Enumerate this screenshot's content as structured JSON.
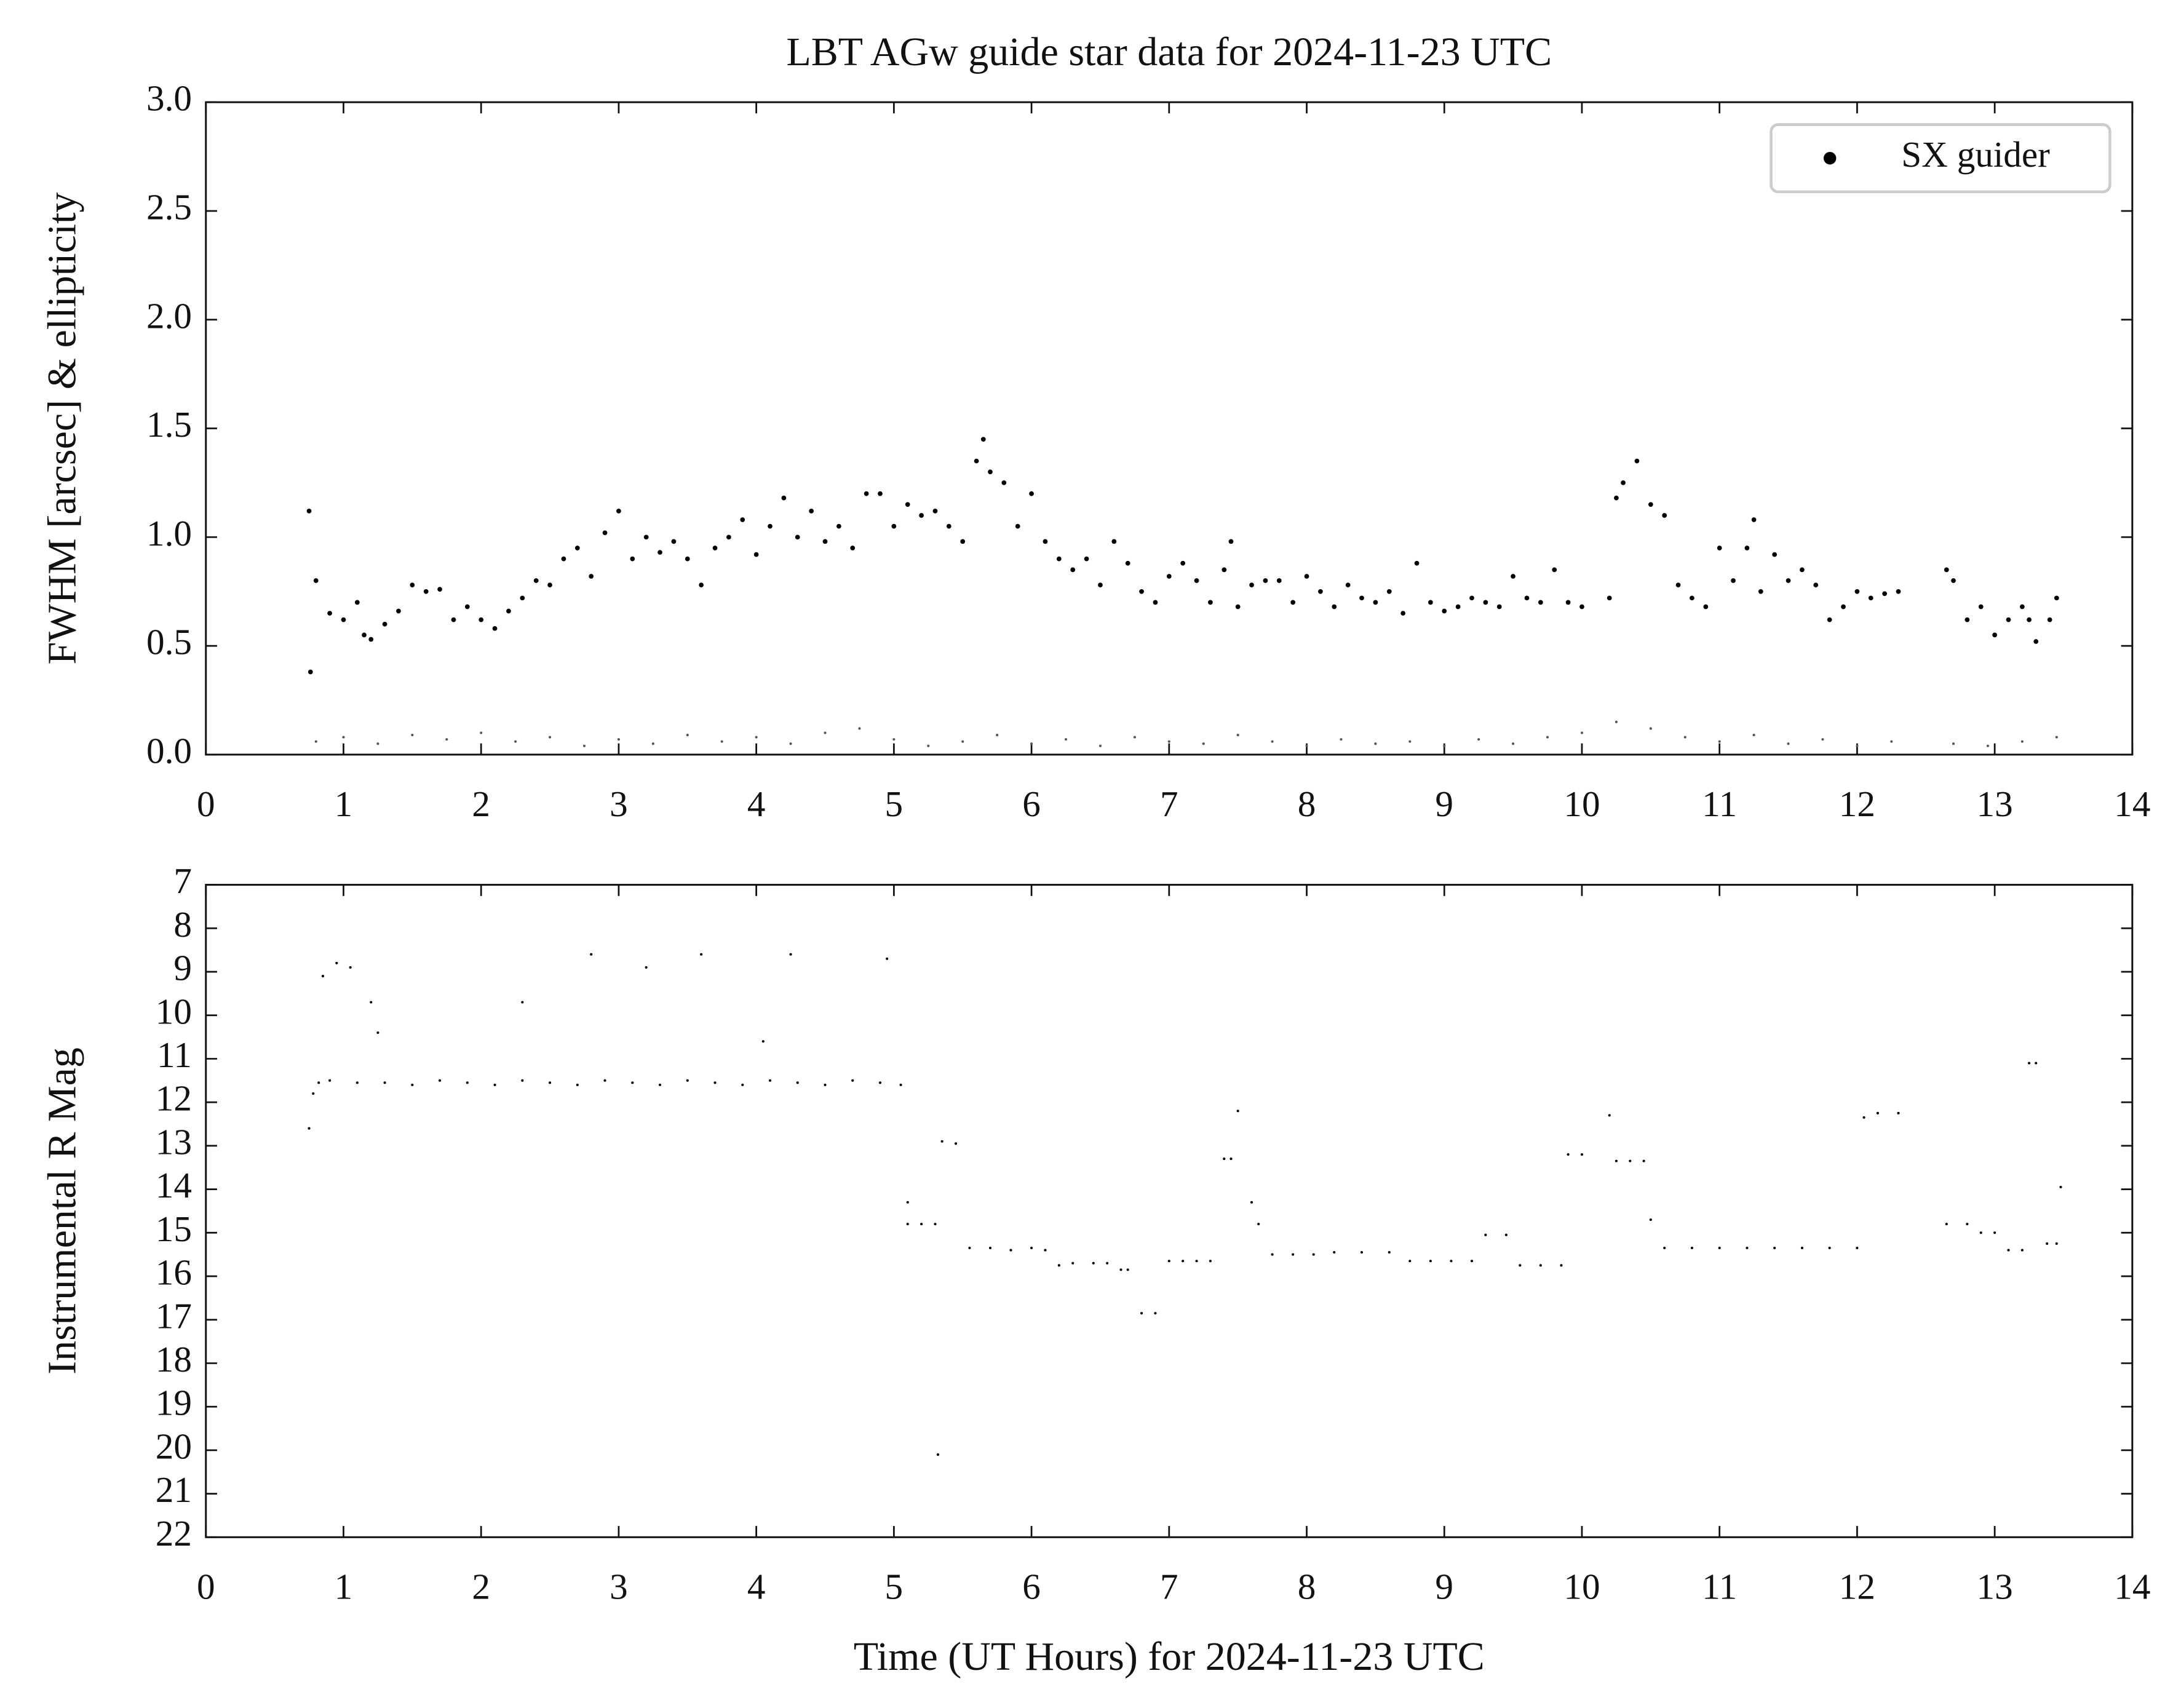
{
  "chart_data": [
    {
      "type": "scatter",
      "title": "LBT AGw guide star data for 2024-11-23 UTC",
      "y_label": "FWHM [arcsec] & ellipticity",
      "xlim": [
        0,
        14
      ],
      "xticks": [
        0,
        1,
        2,
        3,
        4,
        5,
        6,
        7,
        8,
        9,
        10,
        11,
        12,
        13,
        14
      ],
      "ylim": [
        0,
        3
      ],
      "yticks": [
        {
          "value": 0,
          "label": "0.0"
        },
        0.5,
        {
          "value": 1,
          "label": "1.0"
        },
        1.5,
        {
          "value": 2,
          "label": "2.0"
        },
        2.5,
        {
          "value": 3,
          "label": "3.0"
        }
      ],
      "legend": "upper right",
      "series": [
        {
          "name": "SX guider",
          "color": "#000000",
          "x": [
            0.75,
            0.76,
            0.8,
            0.9,
            1.0,
            1.1,
            1.15,
            1.2,
            1.3,
            1.4,
            1.5,
            1.6,
            1.7,
            1.8,
            1.9,
            2.0,
            2.1,
            2.2,
            2.3,
            2.4,
            2.5,
            2.6,
            2.7,
            2.8,
            2.9,
            3.0,
            3.1,
            3.2,
            3.3,
            3.4,
            3.5,
            3.6,
            3.7,
            3.8,
            3.9,
            4.0,
            4.1,
            4.2,
            4.3,
            4.4,
            4.5,
            4.6,
            4.7,
            4.8,
            4.9,
            5.0,
            5.1,
            5.2,
            5.3,
            5.4,
            5.5,
            5.6,
            5.65,
            5.7,
            5.8,
            5.9,
            6.0,
            6.1,
            6.2,
            6.3,
            6.4,
            6.5,
            6.6,
            6.7,
            6.8,
            6.9,
            7.0,
            7.1,
            7.2,
            7.3,
            7.4,
            7.45,
            7.5,
            7.6,
            7.7,
            7.8,
            7.9,
            8.0,
            8.1,
            8.2,
            8.3,
            8.4,
            8.5,
            8.6,
            8.7,
            8.8,
            8.9,
            9.0,
            9.1,
            9.2,
            9.3,
            9.4,
            9.5,
            9.6,
            9.7,
            9.8,
            9.9,
            10.0,
            10.2,
            10.25,
            10.3,
            10.4,
            10.5,
            10.6,
            10.7,
            10.8,
            10.9,
            11.0,
            11.1,
            11.2,
            11.25,
            11.3,
            11.4,
            11.5,
            11.6,
            11.7,
            11.8,
            11.9,
            12.0,
            12.1,
            12.2,
            12.3,
            12.65,
            12.7,
            12.8,
            12.9,
            13.0,
            13.1,
            13.2,
            13.25,
            13.3,
            13.4,
            13.45
          ],
          "values": [
            1.12,
            0.38,
            0.8,
            0.65,
            0.62,
            0.7,
            0.55,
            0.53,
            0.6,
            0.66,
            0.78,
            0.75,
            0.76,
            0.62,
            0.68,
            0.62,
            0.58,
            0.66,
            0.72,
            0.8,
            0.78,
            0.9,
            0.95,
            0.82,
            1.02,
            1.12,
            0.9,
            1.0,
            0.93,
            0.98,
            0.9,
            0.78,
            0.95,
            1.0,
            1.08,
            0.92,
            1.05,
            1.18,
            1.0,
            1.12,
            0.98,
            1.05,
            0.95,
            1.2,
            1.2,
            1.05,
            1.15,
            1.1,
            1.12,
            1.05,
            0.98,
            1.35,
            1.45,
            1.3,
            1.25,
            1.05,
            1.2,
            0.98,
            0.9,
            0.85,
            0.9,
            0.78,
            0.98,
            0.88,
            0.75,
            0.7,
            0.82,
            0.88,
            0.8,
            0.7,
            0.85,
            0.98,
            0.68,
            0.78,
            0.8,
            0.8,
            0.7,
            0.82,
            0.75,
            0.68,
            0.78,
            0.72,
            0.7,
            0.75,
            0.65,
            0.88,
            0.7,
            0.66,
            0.68,
            0.72,
            0.7,
            0.68,
            0.82,
            0.72,
            0.7,
            0.85,
            0.7,
            0.68,
            0.72,
            1.18,
            1.25,
            1.35,
            1.15,
            1.1,
            0.78,
            0.72,
            0.68,
            0.95,
            0.8,
            0.95,
            1.08,
            0.75,
            0.92,
            0.8,
            0.85,
            0.78,
            0.62,
            0.68,
            0.75,
            0.72,
            0.74,
            0.75,
            0.85,
            0.8,
            0.62,
            0.68,
            0.55,
            0.62,
            0.68,
            0.62,
            0.52,
            0.62,
            0.72
          ]
        },
        {
          "color": "#555555",
          "x": [
            0.8,
            1.0,
            1.25,
            1.5,
            1.75,
            2.0,
            2.25,
            2.5,
            2.75,
            3.0,
            3.25,
            3.5,
            3.75,
            4.0,
            4.25,
            4.5,
            4.75,
            5.0,
            5.25,
            5.5,
            5.75,
            6.0,
            6.25,
            6.5,
            6.75,
            7.0,
            7.25,
            7.5,
            7.75,
            8.0,
            8.25,
            8.5,
            8.75,
            9.0,
            9.25,
            9.5,
            9.75,
            10.0,
            10.25,
            10.5,
            10.75,
            11.0,
            11.25,
            11.5,
            11.75,
            12.0,
            12.25,
            12.7,
            12.95,
            13.2,
            13.45
          ],
          "values": [
            0.06,
            0.08,
            0.05,
            0.09,
            0.07,
            0.1,
            0.06,
            0.08,
            0.04,
            0.07,
            0.05,
            0.09,
            0.06,
            0.08,
            0.05,
            0.1,
            0.12,
            0.07,
            0.04,
            0.06,
            0.09,
            0.05,
            0.07,
            0.04,
            0.08,
            0.06,
            0.05,
            0.09,
            0.06,
            0.04,
            0.07,
            0.05,
            0.06,
            0.04,
            0.07,
            0.05,
            0.08,
            0.1,
            0.15,
            0.12,
            0.08,
            0.06,
            0.09,
            0.05,
            0.07,
            0.04,
            0.06,
            0.05,
            0.04,
            0.06,
            0.08
          ]
        }
      ]
    },
    {
      "type": "scatter",
      "x_label": "Time (UT Hours) for 2024-11-23 UTC",
      "y_label": "Instrumental R Mag",
      "xlim": [
        0,
        14
      ],
      "xticks": [
        0,
        1,
        2,
        3,
        4,
        5,
        6,
        7,
        8,
        9,
        10,
        11,
        12,
        13,
        14
      ],
      "ylim": [
        22,
        7
      ],
      "yticks": [
        7,
        8,
        9,
        10,
        11,
        12,
        13,
        14,
        15,
        16,
        17,
        18,
        19,
        20,
        21,
        22
      ],
      "series": [
        {
          "color": "#000000",
          "x": [
            0.75,
            0.78,
            0.82,
            0.85,
            0.9,
            0.95,
            1.05,
            1.1,
            1.2,
            1.25,
            1.3,
            1.5,
            1.7,
            1.9,
            2.1,
            2.3,
            2.3,
            2.5,
            2.7,
            2.8,
            2.9,
            3.1,
            3.2,
            3.3,
            3.5,
            3.6,
            3.7,
            3.9,
            4.05,
            4.1,
            4.25,
            4.3,
            4.5,
            4.7,
            4.9,
            4.95,
            5.05,
            5.1,
            5.1,
            5.2,
            5.3,
            5.32,
            5.35,
            5.45,
            5.55,
            5.7,
            5.85,
            6.0,
            6.1,
            6.2,
            6.3,
            6.45,
            6.55,
            6.65,
            6.7,
            6.8,
            6.9,
            7.0,
            7.1,
            7.2,
            7.3,
            7.4,
            7.45,
            7.5,
            7.6,
            7.65,
            7.75,
            7.9,
            8.05,
            8.2,
            8.4,
            8.6,
            8.75,
            8.9,
            9.05,
            9.2,
            9.3,
            9.45,
            9.55,
            9.7,
            9.85,
            9.9,
            10.0,
            10.2,
            10.25,
            10.35,
            10.45,
            10.5,
            10.6,
            10.8,
            11.0,
            11.2,
            11.4,
            11.6,
            11.8,
            12.0,
            12.05,
            12.15,
            12.3,
            12.65,
            12.8,
            12.9,
            13.0,
            13.1,
            13.2,
            13.25,
            13.3,
            13.38,
            13.45,
            13.48
          ],
          "values": [
            12.6,
            11.8,
            11.55,
            9.1,
            11.5,
            8.8,
            8.9,
            11.55,
            9.7,
            10.4,
            11.55,
            11.6,
            11.5,
            11.55,
            11.6,
            11.5,
            9.7,
            11.55,
            11.6,
            8.6,
            11.5,
            11.55,
            8.9,
            11.6,
            11.5,
            8.6,
            11.55,
            11.6,
            10.6,
            11.5,
            8.6,
            11.55,
            11.6,
            11.5,
            11.55,
            8.7,
            11.6,
            14.8,
            14.3,
            14.8,
            14.8,
            20.1,
            12.9,
            12.95,
            15.35,
            15.35,
            15.4,
            15.35,
            15.4,
            15.75,
            15.7,
            15.7,
            15.7,
            15.85,
            15.85,
            16.85,
            16.85,
            15.65,
            15.65,
            15.65,
            15.65,
            13.3,
            13.3,
            12.2,
            14.3,
            14.8,
            15.5,
            15.5,
            15.5,
            15.45,
            15.45,
            15.45,
            15.65,
            15.65,
            15.65,
            15.65,
            15.05,
            15.05,
            15.75,
            15.75,
            15.75,
            13.2,
            13.2,
            12.3,
            13.35,
            13.35,
            13.35,
            14.7,
            15.35,
            15.35,
            15.35,
            15.35,
            15.35,
            15.35,
            15.35,
            15.35,
            12.35,
            12.25,
            12.25,
            14.8,
            14.8,
            15.0,
            15.0,
            15.4,
            15.4,
            11.1,
            11.1,
            15.25,
            15.25,
            13.95
          ]
        }
      ]
    }
  ]
}
